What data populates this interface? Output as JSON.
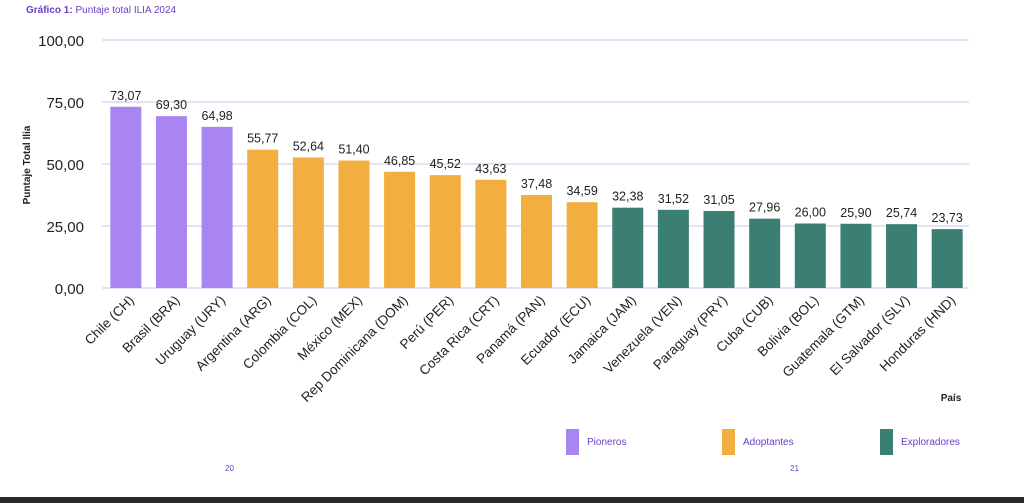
{
  "caption": {
    "prefix": "Gráfico 1:",
    "text": "Puntaje total ILIA 2024"
  },
  "chart_data": {
    "type": "bar",
    "ylabel": "Puntaje Total Ilia",
    "xlabel": "País",
    "ylim": [
      0,
      100
    ],
    "yticks": [
      "0,00",
      "25,00",
      "50,00",
      "75,00",
      "100,00"
    ],
    "grid": true,
    "categories": [
      "Chile (CH)",
      "Brasil (BRA)",
      "Uruguay (URY)",
      "Argentina (ARG)",
      "Colombia (COL)",
      "México (MEX)",
      "Rep Dominicana (DOM)",
      "Perú (PER)",
      "Costa Rica (CRT)",
      "Panamá (PAN)",
      "Ecuador (ECU)",
      "Jamaica (JAM)",
      "Venezuela (VEN)",
      "Paraguay (PRY)",
      "Cuba (CUB)",
      "Bolivia (BOL)",
      "Guatemala (GTM)",
      "El Salvador (SLV)",
      "Honduras (HND)"
    ],
    "values": [
      73.07,
      69.3,
      64.98,
      55.77,
      52.64,
      51.4,
      46.85,
      45.52,
      43.63,
      37.48,
      34.59,
      32.38,
      31.52,
      31.05,
      27.96,
      26.0,
      25.9,
      25.74,
      23.73
    ],
    "value_labels": [
      "73,07",
      "69,30",
      "64,98",
      "55,77",
      "52,64",
      "51,40",
      "46,85",
      "45,52",
      "43,63",
      "37,48",
      "34,59",
      "32,38",
      "31,52",
      "31,05",
      "27,96",
      "26,00",
      "25,90",
      "25,74",
      "23,73"
    ],
    "groups": [
      "Pioneros",
      "Pioneros",
      "Pioneros",
      "Adoptantes",
      "Adoptantes",
      "Adoptantes",
      "Adoptantes",
      "Adoptantes",
      "Adoptantes",
      "Adoptantes",
      "Adoptantes",
      "Exploradores",
      "Exploradores",
      "Exploradores",
      "Exploradores",
      "Exploradores",
      "Exploradores",
      "Exploradores",
      "Exploradores"
    ],
    "legend": [
      {
        "name": "Pioneros",
        "color": "#a985f2"
      },
      {
        "name": "Adoptantes",
        "color": "#f2af3f"
      },
      {
        "name": "Exploradores",
        "color": "#3b7f73"
      }
    ],
    "legend_position": "bottom-right"
  },
  "page_numbers": {
    "left": "20",
    "right": "21"
  }
}
